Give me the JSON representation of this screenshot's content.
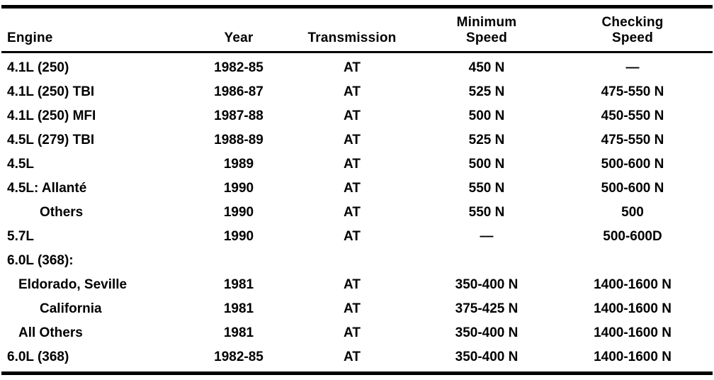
{
  "page": {
    "background": "#ffffff",
    "text_color": "#000000",
    "rule_color": "#000000"
  },
  "table": {
    "headers": {
      "engine": "Engine",
      "year": "Year",
      "transmission": "Transmission",
      "minimum_speed": "Minimum Speed",
      "checking_speed": "Checking Speed"
    },
    "rows": [
      {
        "engine": "4.1L (250)",
        "indent": 0,
        "year": "1982-85",
        "transmission": "AT",
        "minimum_speed": "450 N",
        "checking_speed": "—"
      },
      {
        "engine": "4.1L (250) TBI",
        "indent": 0,
        "year": "1986-87",
        "transmission": "AT",
        "minimum_speed": "525 N",
        "checking_speed": "475-550 N"
      },
      {
        "engine": "4.1L (250) MFI",
        "indent": 0,
        "year": "1987-88",
        "transmission": "AT",
        "minimum_speed": "500 N",
        "checking_speed": "450-550 N"
      },
      {
        "engine": "4.5L (279) TBI",
        "indent": 0,
        "year": "1988-89",
        "transmission": "AT",
        "minimum_speed": "525 N",
        "checking_speed": "475-550 N"
      },
      {
        "engine": "4.5L",
        "indent": 0,
        "year": "1989",
        "transmission": "AT",
        "minimum_speed": "500 N",
        "checking_speed": "500-600 N"
      },
      {
        "engine": "4.5L: Allanté",
        "indent": 0,
        "year": "1990",
        "transmission": "AT",
        "minimum_speed": "550 N",
        "checking_speed": "500-600 N"
      },
      {
        "engine": "Others",
        "indent": 2,
        "year": "1990",
        "transmission": "AT",
        "minimum_speed": "550 N",
        "checking_speed": "500"
      },
      {
        "engine": "5.7L",
        "indent": 0,
        "year": "1990",
        "transmission": "AT",
        "minimum_speed": "—",
        "checking_speed": "500-600D"
      },
      {
        "engine": "6.0L (368):",
        "indent": 0,
        "year": "",
        "transmission": "",
        "minimum_speed": "",
        "checking_speed": ""
      },
      {
        "engine": "Eldorado, Seville",
        "indent": 1,
        "year": "1981",
        "transmission": "AT",
        "minimum_speed": "350-400 N",
        "checking_speed": "1400-1600 N"
      },
      {
        "engine": "California",
        "indent": 2,
        "year": "1981",
        "transmission": "AT",
        "minimum_speed": "375-425 N",
        "checking_speed": "1400-1600 N"
      },
      {
        "engine": "All Others",
        "indent": 1,
        "year": "1981",
        "transmission": "AT",
        "minimum_speed": "350-400 N",
        "checking_speed": "1400-1600 N"
      },
      {
        "engine": "6.0L (368)",
        "indent": 0,
        "year": "1982-85",
        "transmission": "AT",
        "minimum_speed": "350-400 N",
        "checking_speed": "1400-1600 N"
      }
    ]
  }
}
